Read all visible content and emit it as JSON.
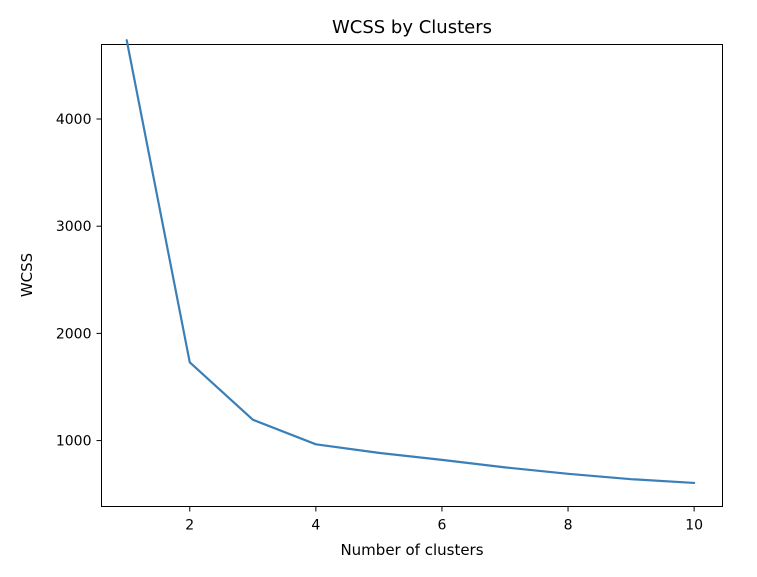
{
  "chart_data": {
    "type": "line",
    "title": "WCSS by Clusters",
    "xlabel": "Number of clusters",
    "ylabel": "WCSS",
    "x": [
      1,
      2,
      3,
      4,
      5,
      6,
      7,
      8,
      9,
      10
    ],
    "series": [
      {
        "values": [
          4735,
          1730,
          1195,
          965,
          885,
          820,
          750,
          690,
          640,
          605
        ],
        "color": "#3a7fb7"
      }
    ],
    "xlim": [
      0.6,
      10.45
    ],
    "ylim": [
      385,
      4695
    ],
    "xticks": [
      2,
      4,
      6,
      8,
      10
    ],
    "yticks": [
      1000,
      2000,
      3000,
      4000
    ],
    "grid": false,
    "legend": "none"
  }
}
